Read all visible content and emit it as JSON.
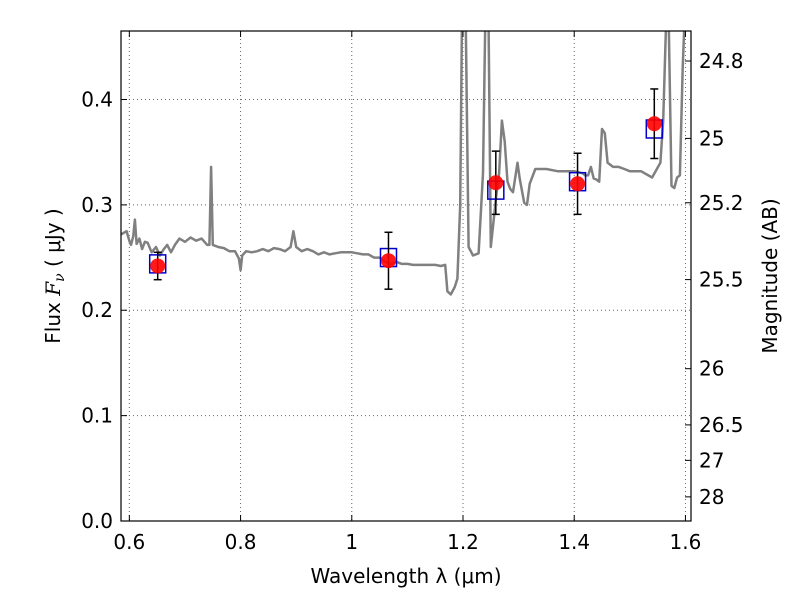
{
  "chart_data": {
    "type": "scatter",
    "title": "",
    "xlabel": "Wavelength  λ (μm)",
    "ylabel_left_prefix": "Flux  ",
    "ylabel_left_math": "F",
    "ylabel_left_sub": "ν",
    "ylabel_left_suffix": "  ( μJy )",
    "ylabel_right": "Magnitude (AB)",
    "xlim": [
      0.585,
      1.61
    ],
    "ylim": [
      0.0,
      0.465
    ],
    "grid": true,
    "x_ticks": [
      {
        "value": 0.6,
        "label": "0.6"
      },
      {
        "value": 0.8,
        "label": "0.8"
      },
      {
        "value": 1.0,
        "label": "1"
      },
      {
        "value": 1.2,
        "label": "1.2"
      },
      {
        "value": 1.4,
        "label": "1.4"
      },
      {
        "value": 1.6,
        "label": "1.6"
      }
    ],
    "y_ticks": [
      {
        "value": 0.0,
        "label": "0.0"
      },
      {
        "value": 0.1,
        "label": "0.1"
      },
      {
        "value": 0.2,
        "label": "0.2"
      },
      {
        "value": 0.3,
        "label": "0.3"
      },
      {
        "value": 0.4,
        "label": "0.4"
      }
    ],
    "right_ticks": [
      {
        "label": "24.8",
        "mag": 24.8
      },
      {
        "label": "25",
        "mag": 25.0
      },
      {
        "label": "25.2",
        "mag": 25.2
      },
      {
        "label": "25.5",
        "mag": 25.5
      },
      {
        "label": "26",
        "mag": 26.0
      },
      {
        "label": "26.5",
        "mag": 26.5
      },
      {
        "label": "27",
        "mag": 27.0
      },
      {
        "label": "28",
        "mag": 28.0
      }
    ],
    "colors": {
      "model": "#808080",
      "observed": "#ff0000",
      "synthetic": "#0000cc",
      "errorbar": "#000000",
      "grid": "#666666"
    },
    "observed_points": [
      {
        "x": 0.651,
        "y": 0.242,
        "yerr": 0.013
      },
      {
        "x": 1.066,
        "y": 0.247,
        "yerr": 0.027
      },
      {
        "x": 1.259,
        "y": 0.321,
        "yerr": 0.03
      },
      {
        "x": 1.406,
        "y": 0.32,
        "yerr": 0.029
      },
      {
        "x": 1.544,
        "y": 0.377,
        "yerr": 0.033
      }
    ],
    "synthetic_points": [
      {
        "x": 0.651,
        "y": 0.244
      },
      {
        "x": 1.066,
        "y": 0.25
      },
      {
        "x": 1.259,
        "y": 0.314
      },
      {
        "x": 1.406,
        "y": 0.322
      },
      {
        "x": 1.544,
        "y": 0.372
      }
    ],
    "model_spectrum": [
      [
        0.585,
        0.272
      ],
      [
        0.595,
        0.275
      ],
      [
        0.6,
        0.266
      ],
      [
        0.603,
        0.262
      ],
      [
        0.607,
        0.27
      ],
      [
        0.61,
        0.286
      ],
      [
        0.613,
        0.263
      ],
      [
        0.618,
        0.268
      ],
      [
        0.623,
        0.258
      ],
      [
        0.628,
        0.265
      ],
      [
        0.633,
        0.264
      ],
      [
        0.64,
        0.255
      ],
      [
        0.648,
        0.26
      ],
      [
        0.655,
        0.252
      ],
      [
        0.662,
        0.258
      ],
      [
        0.668,
        0.262
      ],
      [
        0.675,
        0.255
      ],
      [
        0.682,
        0.262
      ],
      [
        0.69,
        0.268
      ],
      [
        0.7,
        0.265
      ],
      [
        0.71,
        0.269
      ],
      [
        0.72,
        0.266
      ],
      [
        0.73,
        0.268
      ],
      [
        0.74,
        0.262
      ],
      [
        0.744,
        0.262
      ],
      [
        0.747,
        0.336
      ],
      [
        0.75,
        0.262
      ],
      [
        0.76,
        0.26
      ],
      [
        0.77,
        0.259
      ],
      [
        0.78,
        0.256
      ],
      [
        0.79,
        0.256
      ],
      [
        0.797,
        0.249
      ],
      [
        0.8,
        0.238
      ],
      [
        0.803,
        0.252
      ],
      [
        0.81,
        0.256
      ],
      [
        0.82,
        0.255
      ],
      [
        0.83,
        0.256
      ],
      [
        0.84,
        0.258
      ],
      [
        0.85,
        0.256
      ],
      [
        0.86,
        0.259
      ],
      [
        0.87,
        0.258
      ],
      [
        0.88,
        0.256
      ],
      [
        0.89,
        0.26
      ],
      [
        0.895,
        0.275
      ],
      [
        0.9,
        0.26
      ],
      [
        0.91,
        0.256
      ],
      [
        0.92,
        0.258
      ],
      [
        0.93,
        0.256
      ],
      [
        0.94,
        0.253
      ],
      [
        0.95,
        0.255
      ],
      [
        0.96,
        0.253
      ],
      [
        0.97,
        0.254
      ],
      [
        0.98,
        0.255
      ],
      [
        0.99,
        0.255
      ],
      [
        1.0,
        0.255
      ],
      [
        1.01,
        0.254
      ],
      [
        1.02,
        0.253
      ],
      [
        1.03,
        0.253
      ],
      [
        1.04,
        0.25
      ],
      [
        1.05,
        0.25
      ],
      [
        1.06,
        0.246
      ],
      [
        1.07,
        0.244
      ],
      [
        1.08,
        0.246
      ],
      [
        1.09,
        0.244
      ],
      [
        1.1,
        0.244
      ],
      [
        1.11,
        0.243
      ],
      [
        1.12,
        0.243
      ],
      [
        1.13,
        0.243
      ],
      [
        1.15,
        0.243
      ],
      [
        1.16,
        0.242
      ],
      [
        1.168,
        0.243
      ],
      [
        1.172,
        0.218
      ],
      [
        1.178,
        0.215
      ],
      [
        1.185,
        0.222
      ],
      [
        1.19,
        0.23
      ],
      [
        1.195,
        0.3
      ],
      [
        1.198,
        0.47
      ],
      [
        1.205,
        0.47
      ],
      [
        1.21,
        0.26
      ],
      [
        1.218,
        0.252
      ],
      [
        1.228,
        0.254
      ],
      [
        1.236,
        0.33
      ],
      [
        1.24,
        0.47
      ],
      [
        1.246,
        0.47
      ],
      [
        1.25,
        0.26
      ],
      [
        1.255,
        0.285
      ],
      [
        1.26,
        0.31
      ],
      [
        1.265,
        0.33
      ],
      [
        1.27,
        0.38
      ],
      [
        1.275,
        0.36
      ],
      [
        1.28,
        0.322
      ],
      [
        1.285,
        0.315
      ],
      [
        1.29,
        0.312
      ],
      [
        1.298,
        0.34
      ],
      [
        1.302,
        0.325
      ],
      [
        1.31,
        0.302
      ],
      [
        1.315,
        0.3
      ],
      [
        1.32,
        0.32
      ],
      [
        1.33,
        0.334
      ],
      [
        1.35,
        0.334
      ],
      [
        1.37,
        0.332
      ],
      [
        1.4,
        0.332
      ],
      [
        1.415,
        0.33
      ],
      [
        1.42,
        0.328
      ],
      [
        1.425,
        0.328
      ],
      [
        1.43,
        0.336
      ],
      [
        1.435,
        0.325
      ],
      [
        1.44,
        0.324
      ],
      [
        1.445,
        0.322
      ],
      [
        1.45,
        0.372
      ],
      [
        1.455,
        0.368
      ],
      [
        1.46,
        0.34
      ],
      [
        1.47,
        0.336
      ],
      [
        1.48,
        0.336
      ],
      [
        1.49,
        0.334
      ],
      [
        1.5,
        0.332
      ],
      [
        1.52,
        0.332
      ],
      [
        1.54,
        0.326
      ],
      [
        1.555,
        0.34
      ],
      [
        1.56,
        0.38
      ],
      [
        1.565,
        0.47
      ],
      [
        1.57,
        0.47
      ],
      [
        1.575,
        0.318
      ],
      [
        1.58,
        0.316
      ],
      [
        1.585,
        0.326
      ],
      [
        1.59,
        0.328
      ],
      [
        1.595,
        0.43
      ],
      [
        1.598,
        0.47
      ],
      [
        1.61,
        0.47
      ]
    ]
  }
}
